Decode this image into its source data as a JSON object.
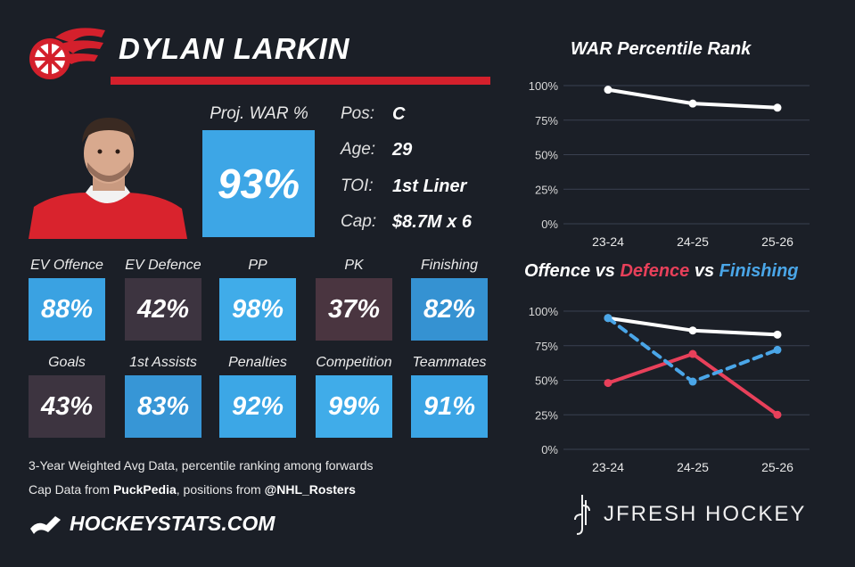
{
  "header": {
    "player_name": "DYLAN LARKIN",
    "brand_color": "#d4202c"
  },
  "projection": {
    "label": "Proj. WAR %",
    "value": "93%"
  },
  "info": [
    {
      "label": "Pos:",
      "value": "C"
    },
    {
      "label": "Age:",
      "value": "29"
    },
    {
      "label": "TOI:",
      "value": "1st Liner"
    },
    {
      "label": "Cap:",
      "value": "$8.7M x 6"
    }
  ],
  "metrics_row1": [
    {
      "label": "EV Offence",
      "value": "88%",
      "color": "#3aa2e2"
    },
    {
      "label": "EV Defence",
      "value": "42%",
      "color": "#3d3440"
    },
    {
      "label": "PP",
      "value": "98%",
      "color": "#40ace9"
    },
    {
      "label": "PK",
      "value": "37%",
      "color": "#4a3540"
    },
    {
      "label": "Finishing",
      "value": "82%",
      "color": "#3592d2"
    }
  ],
  "metrics_row2": [
    {
      "label": "Goals",
      "value": "43%",
      "color": "#3d3440"
    },
    {
      "label": "1st Assists",
      "value": "83%",
      "color": "#3796d6"
    },
    {
      "label": "Penalties",
      "value": "92%",
      "color": "#3ca7e6"
    },
    {
      "label": "Competition",
      "value": "99%",
      "color": "#40ace9"
    },
    {
      "label": "Teammates",
      "value": "91%",
      "color": "#3ba5e5"
    }
  ],
  "footer": {
    "line1": "3-Year Weighted Avg Data, percentile ranking among forwards",
    "line2_prefix": "Cap Data from ",
    "line2_source1": "PuckPedia",
    "line2_mid": ", positions from ",
    "line2_source2": "@NHL_Rosters",
    "site": "HOCKEYSTATS.COM",
    "brand": "JFRESH HOCKEY"
  },
  "chart_data": [
    {
      "type": "line",
      "title": "WAR Percentile Rank",
      "categories": [
        "23-24",
        "24-25",
        "25-26"
      ],
      "yticks": [
        "0%",
        "25%",
        "50%",
        "75%",
        "100%"
      ],
      "ylim": [
        0,
        100
      ],
      "grid": true,
      "series": [
        {
          "values": [
            97,
            87,
            84
          ],
          "color": "#ffffff",
          "dashed": false
        }
      ]
    },
    {
      "type": "line",
      "title_parts": [
        {
          "text": "Offence",
          "color": "#ffffff"
        },
        {
          "text": " vs ",
          "color": "#ffffff"
        },
        {
          "text": "Defence",
          "color": "#e8405a"
        },
        {
          "text": " vs ",
          "color": "#ffffff"
        },
        {
          "text": "Finishing",
          "color": "#4aa6e8"
        }
      ],
      "categories": [
        "23-24",
        "24-25",
        "25-26"
      ],
      "yticks": [
        "0%",
        "25%",
        "50%",
        "75%",
        "100%"
      ],
      "ylim": [
        0,
        100
      ],
      "grid": true,
      "series": [
        {
          "name": "Offence",
          "values": [
            95,
            86,
            83
          ],
          "color": "#ffffff",
          "dashed": false
        },
        {
          "name": "Defence",
          "values": [
            48,
            69,
            25
          ],
          "color": "#e8405a",
          "dashed": false
        },
        {
          "name": "Finishing",
          "values": [
            95,
            49,
            72
          ],
          "color": "#4aa6e8",
          "dashed": true
        }
      ]
    }
  ]
}
